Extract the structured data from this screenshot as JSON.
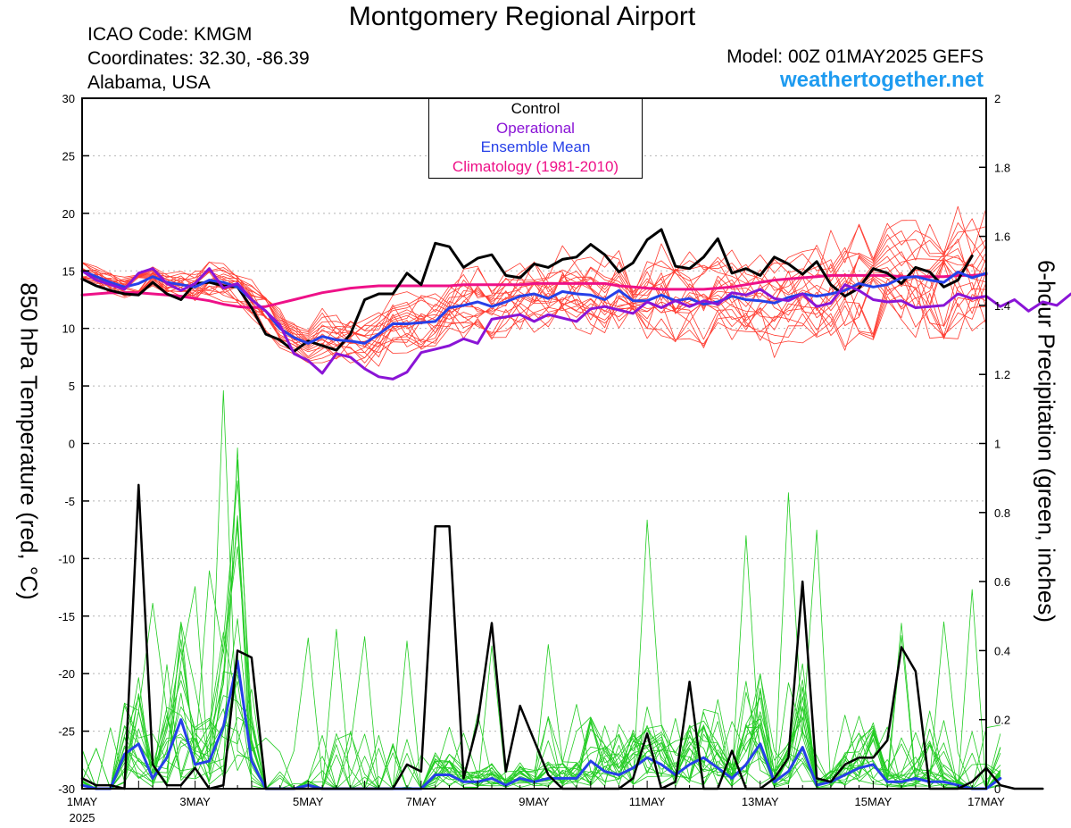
{
  "header": {
    "title": "Montgomery Regional Airport",
    "icao": "ICAO Code: KMGM",
    "coordinates": "Coordinates: 32.30, -86.39",
    "region": "Alabama, USA",
    "model": "Model: 00Z 01MAY2025 GEFS",
    "site": "weathertogether.net"
  },
  "colors": {
    "temp_members": "#ff3b30",
    "precip_members": "#22cc22",
    "control": "#000000",
    "operational": "#8a14d6",
    "ensemble_mean": "#2640e8",
    "climatology": "#ee1188",
    "site": "#1e9bf0"
  },
  "chart_data": {
    "type": "line",
    "title": "Montgomery Regional Airport",
    "ylabel": "850 hPa Temperature (red, °C)",
    "y2label": "6-hour Precipitation (green, inches)",
    "ylim": [
      -30,
      30
    ],
    "y2lim": [
      0,
      2
    ],
    "yticks": [
      "30",
      "25",
      "20",
      "15",
      "10",
      "5",
      "0",
      "-5",
      "-10",
      "-15",
      "-20",
      "-25",
      "-30"
    ],
    "y2ticks": [
      "2",
      "1.8",
      "1.6",
      "1.4",
      "1.2",
      "1",
      "0.8",
      "0.6",
      "0.4",
      "0.2",
      "0"
    ],
    "xlim": [
      0,
      16
    ],
    "xticks": [
      {
        "day": 0,
        "label": "1MAY",
        "sublabel": "2025"
      },
      {
        "day": 2,
        "label": "3MAY"
      },
      {
        "day": 4,
        "label": "5MAY"
      },
      {
        "day": 6,
        "label": "7MAY"
      },
      {
        "day": 8,
        "label": "9MAY"
      },
      {
        "day": 10,
        "label": "11MAY"
      },
      {
        "day": 12,
        "label": "13MAY"
      },
      {
        "day": 14,
        "label": "15MAY"
      },
      {
        "day": 16,
        "label": "17MAY"
      }
    ],
    "legend": [
      "Control",
      "Operational",
      "Ensemble Mean",
      "Climatology (1981-2010)"
    ],
    "legend_position": "top-center",
    "x_step_days": 0.25,
    "temperature": {
      "control": [
        14.3,
        13.7,
        13.3,
        13.0,
        12.9,
        14.0,
        13.0,
        12.5,
        13.9,
        14.0,
        13.7,
        13.6,
        11.8,
        9.5,
        9.0,
        8.0,
        8.9,
        8.5,
        8.1,
        9.5,
        12.5,
        13.0,
        13.0,
        14.8,
        13.8,
        17.4,
        17.1,
        15.3,
        16.1,
        16.4,
        14.6,
        14.4,
        15.6,
        15.3,
        16.0,
        16.2,
        17.3,
        16.4,
        14.9,
        15.7,
        17.7,
        18.6,
        15.4,
        15.2,
        16.2,
        17.8,
        14.8,
        15.2,
        14.6,
        16.2,
        15.6,
        14.7,
        15.8,
        13.8,
        12.8,
        13.5,
        15.2,
        14.8,
        13.9,
        15.3,
        14.9,
        13.6,
        14.2,
        16.3
      ],
      "operational": [
        15.0,
        14.2,
        13.8,
        13.4,
        14.8,
        15.2,
        13.9,
        13.3,
        13.9,
        15.2,
        13.5,
        13.9,
        12.5,
        11.5,
        10.3,
        7.8,
        7.2,
        6.1,
        7.8,
        7.5,
        6.5,
        5.8,
        5.6,
        6.2,
        7.9,
        8.2,
        8.5,
        9.1,
        8.7,
        10.8,
        11.0,
        11.2,
        10.6,
        11.2,
        10.9,
        10.6,
        11.7,
        11.9,
        11.6,
        11.3,
        12.3,
        11.8,
        12.4,
        11.9,
        12.4,
        12.1,
        13.1,
        12.9,
        13.4,
        12.6,
        12.4,
        13.0,
        11.9,
        12.2,
        13.8,
        13.3,
        12.5,
        12.3,
        12.4,
        11.8,
        11.9,
        12.0,
        13.0,
        12.6,
        12.8,
        11.9,
        12.5,
        11.5,
        12.3,
        12.0,
        13.0,
        12.5,
        12.2,
        11.6,
        11.4,
        12.5,
        12.4,
        12.8,
        12.4,
        12.3,
        12.6,
        12.0,
        11.8,
        12.3,
        12.1,
        11.5,
        11.9,
        12.6,
        11.9,
        12.2,
        11.8,
        12.0,
        12.1,
        11.7,
        12.5,
        11.9,
        11.8,
        11.6,
        12.0,
        12.3,
        12.5,
        11.9,
        11.6,
        11.8,
        11.4,
        11.5,
        12.5,
        13.3,
        11.8,
        11.6,
        11.8,
        12.6,
        13.7
      ],
      "ensemble_mean": [
        15.0,
        14.5,
        14.0,
        13.6,
        13.9,
        14.5,
        14.0,
        13.8,
        13.6,
        14.2,
        14.0,
        13.6,
        12.5,
        11.5,
        10.0,
        9.2,
        8.7,
        9.3,
        9.0,
        8.9,
        8.7,
        9.5,
        10.4,
        10.4,
        10.5,
        10.6,
        11.8,
        12.0,
        12.3,
        11.9,
        12.3,
        12.8,
        13.0,
        12.6,
        13.2,
        13.0,
        12.9,
        12.5,
        13.3,
        12.4,
        12.4,
        12.9,
        12.4,
        12.6,
        12.1,
        12.3,
        12.8,
        12.5,
        12.4,
        12.2,
        12.7,
        13.0,
        12.8,
        13.0,
        13.3,
        13.9,
        13.6,
        13.8,
        14.4,
        14.5,
        14.2,
        14.0,
        14.9,
        14.4,
        14.8
      ],
      "climatology": [
        12.9,
        13.0,
        13.1,
        13.1,
        13.1,
        13.0,
        12.9,
        12.8,
        12.6,
        12.4,
        12.1,
        11.9,
        11.8,
        11.9,
        12.2,
        12.5,
        12.8,
        13.1,
        13.3,
        13.5,
        13.6,
        13.7,
        13.7,
        13.7,
        13.7,
        13.7,
        13.7,
        13.8,
        13.8,
        13.8,
        13.8,
        13.8,
        13.9,
        13.9,
        13.9,
        13.9,
        13.9,
        13.9,
        13.7,
        13.6,
        13.5,
        13.4,
        13.4,
        13.4,
        13.4,
        13.5,
        13.6,
        13.8,
        14.0,
        14.2,
        14.3,
        14.4,
        14.5,
        14.6,
        14.6,
        14.6,
        14.6,
        14.6,
        14.5,
        14.5,
        14.5,
        14.5,
        14.6,
        14.6,
        14.7
      ]
    },
    "precipitation": {
      "control": [
        0.03,
        0.01,
        0.01,
        0.0,
        0.88,
        0.07,
        0.01,
        0.01,
        0.06,
        0.0,
        0.01,
        0.4,
        0.38,
        0.0,
        0.0,
        0.0,
        0.0,
        0.0,
        0.0,
        0.0,
        0.0,
        0.0,
        0.0,
        0.07,
        0.05,
        0.76,
        0.76,
        0.03,
        0.19,
        0.48,
        0.05,
        0.24,
        0.14,
        0.04,
        0.0,
        0.0,
        0.0,
        0.0,
        0.0,
        0.03,
        0.16,
        0.0,
        0.02,
        0.31,
        0.0,
        0.0,
        0.11,
        0.0,
        0.0,
        0.03,
        0.09,
        0.6,
        0.03,
        0.02,
        0.07,
        0.09,
        0.09,
        0.14,
        0.41,
        0.34,
        0.0,
        0.0,
        0.0,
        0.02,
        0.06,
        0.01,
        0.0,
        0.0,
        0.0
      ],
      "ensemble_mean": [
        0.01,
        0.0,
        0.0,
        0.1,
        0.13,
        0.03,
        0.09,
        0.2,
        0.07,
        0.08,
        0.18,
        0.37,
        0.08,
        0.0,
        0.0,
        0.0,
        0.01,
        0.0,
        0.0,
        0.0,
        0.0,
        0.0,
        0.0,
        0.0,
        0.0,
        0.04,
        0.04,
        0.02,
        0.02,
        0.03,
        0.01,
        0.03,
        0.02,
        0.03,
        0.03,
        0.03,
        0.08,
        0.05,
        0.04,
        0.06,
        0.09,
        0.07,
        0.04,
        0.07,
        0.09,
        0.06,
        0.03,
        0.07,
        0.13,
        0.02,
        0.05,
        0.12,
        0.01,
        0.02,
        0.04,
        0.06,
        0.07,
        0.02,
        0.02,
        0.03,
        0.02,
        0.02,
        0.01,
        0.0,
        0.0,
        0.03
      ]
    }
  }
}
